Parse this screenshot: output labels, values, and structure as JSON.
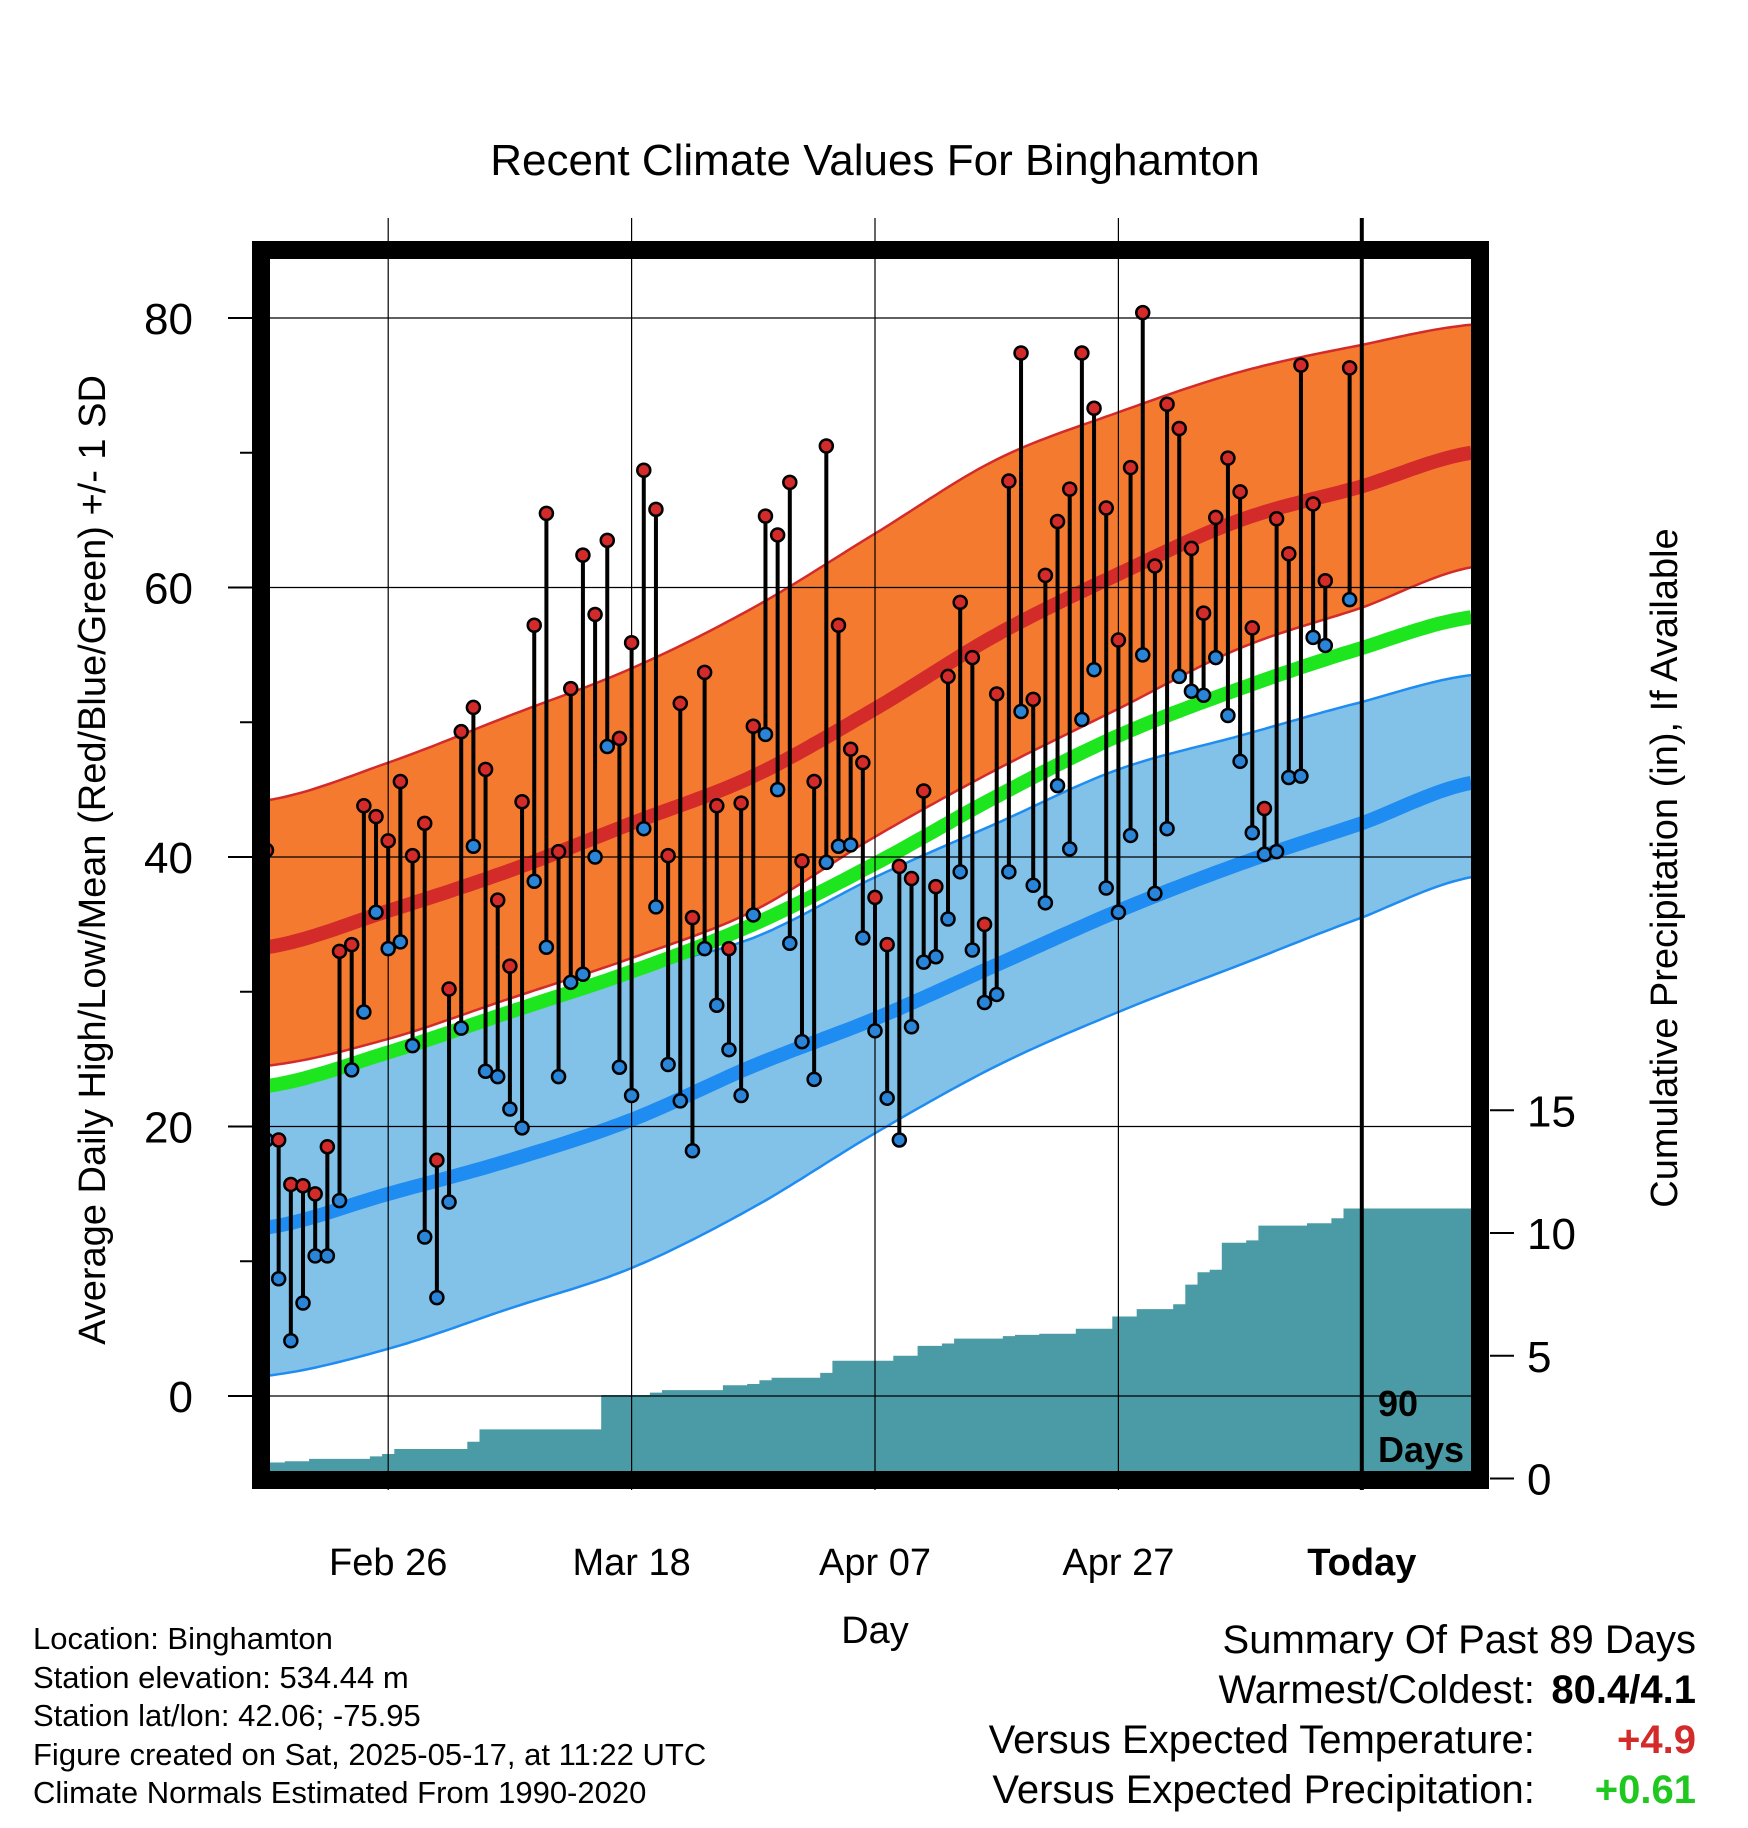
{
  "chart_data": {
    "type": "line",
    "title": "Recent Climate Values For Binghamton",
    "xlabel": "Day",
    "ylabel_left": "Average Daily High/Low/Mean (Red/Blue/Green) +/- 1 SD",
    "ylabel_right": "Cumulative Precipitation (in), If Available",
    "ylim_left": [
      -5,
      86
    ],
    "ylim_right": [
      0,
      20
    ],
    "left_ticks": [
      "0",
      "20",
      "40",
      "60",
      "80"
    ],
    "right_ticks": [
      "0",
      "5",
      "10",
      "15"
    ],
    "x_tick_labels": [
      "Feb 26",
      "Mar 18",
      "Apr 07",
      "Apr 27",
      "Today"
    ],
    "x_tick_days": [
      10,
      30,
      50,
      70,
      90
    ],
    "today_marker": "90\nDays",
    "grid": true,
    "normals": {
      "days": [
        0,
        10,
        20,
        30,
        40,
        50,
        60,
        70,
        80,
        90,
        99
      ],
      "high_mean": [
        33.3,
        36,
        39,
        42.5,
        46,
        51,
        56.5,
        61,
        65,
        67.5,
        70
      ],
      "high_plus_sd": [
        44.2,
        47,
        50.5,
        54,
        58.5,
        64,
        69.5,
        73,
        76,
        78,
        79.5
      ],
      "high_minus_sd": [
        24.5,
        26.5,
        29.5,
        32.5,
        36,
        41.5,
        46.5,
        51,
        55.5,
        58.5,
        61.5
      ],
      "low_mean": [
        12.5,
        15,
        17.5,
        20.5,
        24.5,
        28,
        32,
        36,
        39.5,
        42.5,
        45.5
      ],
      "low_plus_sd": [
        23,
        25.5,
        28.5,
        31.5,
        34,
        38.5,
        42.5,
        46.5,
        49,
        51.5,
        53.5
      ],
      "low_minus_sd": [
        1.5,
        3.5,
        6.5,
        9.5,
        14,
        19.5,
        24.5,
        28.5,
        32,
        35.5,
        38.5
      ],
      "mean": [
        23,
        25.5,
        28.5,
        31.5,
        35,
        39.5,
        44.5,
        49,
        52.5,
        55.5,
        57.8
      ]
    },
    "daily": {
      "days": [
        0,
        1,
        2,
        3,
        4,
        5,
        6,
        7,
        8,
        9,
        10,
        11,
        12,
        13,
        14,
        15,
        16,
        17,
        18,
        19,
        20,
        21,
        22,
        23,
        24,
        25,
        26,
        27,
        28,
        29,
        30,
        31,
        32,
        33,
        34,
        35,
        36,
        37,
        38,
        39,
        40,
        41,
        42,
        43,
        44,
        45,
        46,
        47,
        48,
        49,
        50,
        51,
        52,
        53,
        54,
        55,
        56,
        57,
        58,
        59,
        60,
        61,
        62,
        63,
        64,
        65,
        66,
        67,
        68,
        69,
        70,
        71,
        72,
        73,
        74,
        75,
        76,
        77,
        78,
        79,
        80,
        81,
        82,
        83,
        84,
        85,
        86,
        87,
        88,
        89
      ],
      "high": [
        40.5,
        19,
        15.7,
        15.6,
        15,
        18.5,
        33,
        33.5,
        43.8,
        43,
        41.2,
        45.6,
        40.1,
        42.5,
        17.5,
        30.2,
        49.3,
        51.1,
        46.5,
        36.8,
        31.9,
        44.1,
        57.2,
        65.5,
        40.4,
        52.5,
        62.4,
        58,
        63.5,
        48.8,
        55.9,
        68.7,
        65.8,
        40.1,
        51.4,
        35.5,
        53.7,
        43.8,
        33.2,
        44,
        49.7,
        65.3,
        63.9,
        67.8,
        39.7,
        45.6,
        70.5,
        57.2,
        48,
        47,
        37,
        33.5,
        39.3,
        38.4,
        44.9,
        37.8,
        53.4,
        58.9,
        54.8,
        35,
        52.1,
        67.9,
        77.4,
        51.7,
        60.9,
        64.9,
        67.3,
        77.4,
        73.3,
        65.9,
        56.1,
        68.9,
        80.4,
        61.6,
        73.6,
        71.8,
        62.9,
        58.1,
        65.2,
        69.6,
        67.1,
        57,
        43.6,
        65.1,
        62.5,
        76.5,
        66.2,
        60.5,
        null,
        76.3
      ],
      "low": [
        19,
        8.7,
        4.1,
        6.9,
        10.4,
        10.4,
        14.5,
        24.2,
        28.5,
        35.9,
        33.2,
        33.7,
        26,
        11.8,
        7.3,
        14.4,
        27.3,
        40.8,
        24.1,
        23.7,
        21.3,
        19.9,
        38.2,
        33.3,
        23.7,
        30.7,
        31.3,
        40,
        48.2,
        24.4,
        22.3,
        42.1,
        36.3,
        24.6,
        21.9,
        18.2,
        33.2,
        29,
        25.7,
        22.3,
        35.7,
        49.1,
        45,
        33.6,
        26.3,
        23.5,
        39.6,
        40.8,
        40.9,
        34,
        27.1,
        22.1,
        19,
        27.4,
        32.2,
        32.6,
        35.4,
        38.9,
        33.1,
        29.2,
        29.8,
        38.9,
        50.8,
        37.9,
        36.6,
        45.3,
        40.6,
        50.2,
        53.9,
        37.7,
        35.9,
        41.6,
        55,
        37.3,
        42.1,
        53.4,
        52.3,
        52,
        54.8,
        50.5,
        47.1,
        41.8,
        40.2,
        40.4,
        45.9,
        46,
        56.3,
        55.7,
        null,
        59.1
      ]
    },
    "precip": {
      "days": [
        0,
        1,
        2,
        3,
        4,
        5,
        6,
        7,
        8,
        9,
        10,
        11,
        12,
        13,
        14,
        15,
        16,
        17,
        18,
        19,
        20,
        21,
        22,
        23,
        24,
        25,
        26,
        27,
        28,
        29,
        30,
        31,
        32,
        33,
        34,
        35,
        36,
        37,
        38,
        39,
        40,
        41,
        42,
        43,
        44,
        45,
        46,
        47,
        48,
        49,
        50,
        51,
        52,
        53,
        54,
        55,
        56,
        57,
        58,
        59,
        60,
        61,
        62,
        63,
        64,
        65,
        66,
        67,
        68,
        69,
        70,
        71,
        72,
        73,
        74,
        75,
        76,
        77,
        78,
        79,
        80,
        81,
        82,
        83,
        84,
        85,
        86,
        87,
        88,
        89,
        90,
        91,
        92,
        93,
        94,
        95,
        96,
        97,
        98,
        99
      ],
      "cumulative": [
        0.65,
        0.65,
        0.7,
        0.7,
        0.8,
        0.8,
        0.8,
        0.8,
        0.8,
        0.9,
        1,
        1.2,
        1.2,
        1.2,
        1.2,
        1.2,
        1.2,
        1.5,
        2,
        2,
        2,
        2,
        2,
        2,
        2,
        2,
        2,
        2,
        3.4,
        3.4,
        3.4,
        3.4,
        3.5,
        3.6,
        3.6,
        3.6,
        3.6,
        3.6,
        3.8,
        3.8,
        3.85,
        4,
        4.1,
        4.1,
        4.1,
        4.1,
        4.3,
        4.8,
        4.8,
        4.8,
        4.8,
        4.8,
        5,
        5,
        5.4,
        5.4,
        5.5,
        5.7,
        5.7,
        5.7,
        5.7,
        5.8,
        5.85,
        5.85,
        5.9,
        5.9,
        5.9,
        6.1,
        6.1,
        6.1,
        6.6,
        6.6,
        6.9,
        6.9,
        6.9,
        7.1,
        7.9,
        8.4,
        8.5,
        9.6,
        9.6,
        9.7,
        10.3,
        10.3,
        10.3,
        10.3,
        10.4,
        10.4,
        10.6,
        11,
        11,
        11,
        11,
        11,
        11,
        11,
        11,
        11,
        11,
        11
      ]
    },
    "colors": {
      "high_band": "#F47A30",
      "high_line": "#D32A2A",
      "low_band": "#82C1E8",
      "low_line": "#1E8CF0",
      "mean_line": "#1EE61E",
      "precip_fill": "#4A9BA6",
      "high_dot": "#D32A2A",
      "low_dot": "#2A85D8"
    }
  },
  "info": {
    "location": "Location: Binghamton",
    "elevation": "Station elevation: 534.44 m",
    "latlon": "Station lat/lon: 42.06; -75.95",
    "created": "Figure created on Sat, 2025-05-17, at 11:22 UTC",
    "normals": "Climate Normals Estimated From 1990-2020"
  },
  "summary": {
    "heading": "Summary Of Past 89 Days",
    "warm_cold_label": "Warmest/Coldest:",
    "warm_cold_value": "80.4/4.1",
    "temp_label": "Versus Expected Temperature:",
    "temp_value": "+4.9",
    "temp_color": "#D32A2A",
    "precip_label": "Versus Expected Precipitation:",
    "precip_value": "+0.61",
    "precip_color": "#1EC81E"
  }
}
